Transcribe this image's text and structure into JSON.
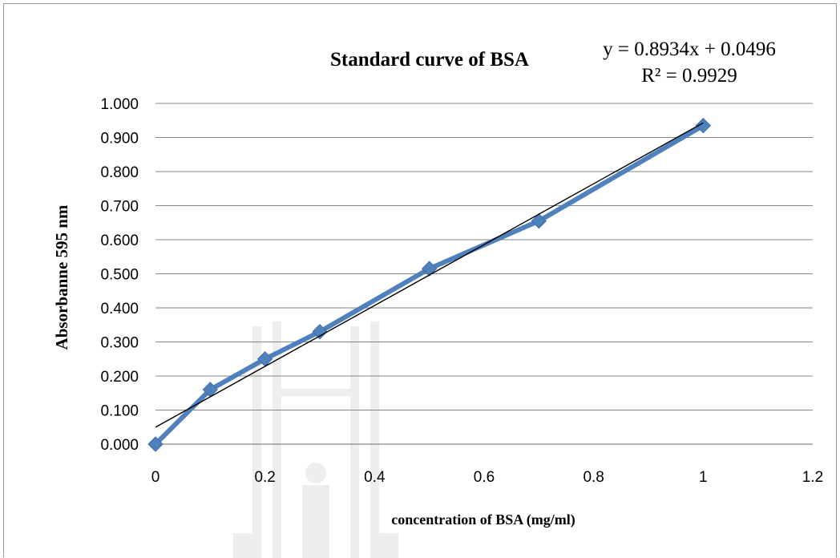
{
  "chart_data": {
    "type": "line",
    "title": "Standard curve of BSA",
    "xlabel": "concentration of BSA (mg/ml)",
    "ylabel": "Absorbanne 595 nm",
    "xlim": [
      0,
      1.2
    ],
    "ylim": [
      0,
      1.0
    ],
    "x_ticks": [
      "0",
      "0.2",
      "0.4",
      "0.6",
      "0.8",
      "1",
      "1.2"
    ],
    "y_ticks": [
      "0.000",
      "0.100",
      "0.200",
      "0.300",
      "0.400",
      "0.500",
      "0.600",
      "0.700",
      "0.800",
      "0.900",
      "1.000"
    ],
    "grid": true,
    "legend": "none",
    "series": [
      {
        "x": [
          0,
          0.1,
          0.2,
          0.3,
          0.5,
          0.7,
          1.0
        ],
        "y": [
          0.0,
          0.16,
          0.25,
          0.33,
          0.515,
          0.655,
          0.935
        ],
        "color": "#4f81bd",
        "marker": "diamond"
      }
    ],
    "trendline": {
      "type": "linear",
      "slope": 0.8934,
      "intercept": 0.0496,
      "equation": "y = 0.8934x + 0.0496",
      "r_squared": "R² = 0.9929",
      "color": "#000000"
    }
  }
}
